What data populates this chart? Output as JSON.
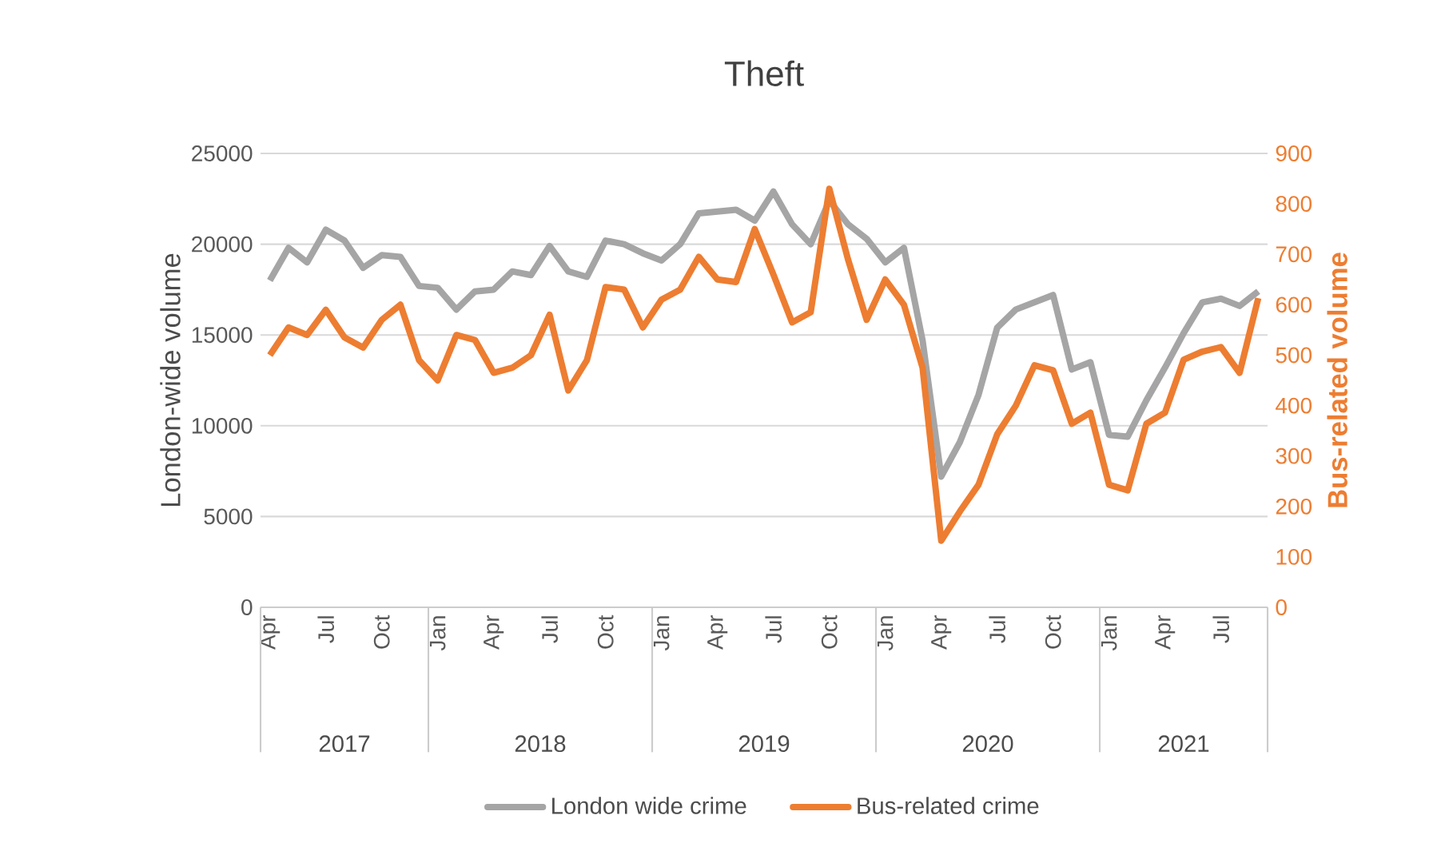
{
  "chart_data": {
    "type": "line",
    "title": "Theft",
    "ylabel": "London-wide volume",
    "y2label": "Bus-related volume",
    "x": [
      "2017-04",
      "2017-05",
      "2017-06",
      "2017-07",
      "2017-08",
      "2017-09",
      "2017-10",
      "2017-11",
      "2017-12",
      "2018-01",
      "2018-02",
      "2018-03",
      "2018-04",
      "2018-05",
      "2018-06",
      "2018-07",
      "2018-08",
      "2018-09",
      "2018-10",
      "2018-11",
      "2018-12",
      "2019-01",
      "2019-02",
      "2019-03",
      "2019-04",
      "2019-05",
      "2019-06",
      "2019-07",
      "2019-08",
      "2019-09",
      "2019-10",
      "2019-11",
      "2019-12",
      "2020-01",
      "2020-02",
      "2020-03",
      "2020-04",
      "2020-05",
      "2020-06",
      "2020-07",
      "2020-08",
      "2020-09",
      "2020-10",
      "2020-11",
      "2020-12",
      "2021-01",
      "2021-02",
      "2021-03",
      "2021-04",
      "2021-05",
      "2021-06",
      "2021-07",
      "2021-08",
      "2021-09"
    ],
    "series": [
      {
        "name": "London wide crime",
        "color": "#a5a5a5",
        "values": [
          18000,
          19800,
          19000,
          20800,
          20200,
          18700,
          19400,
          19300,
          17700,
          17600,
          16400,
          17400,
          17500,
          18500,
          18300,
          19900,
          18500,
          18200,
          20200,
          20000,
          19500,
          19100,
          20000,
          21700,
          21800,
          21900,
          21300,
          22900,
          21100,
          20000,
          22400,
          21100,
          20300,
          19000,
          19800,
          14700,
          7200,
          9100,
          11700,
          15400,
          16400,
          16800,
          17200,
          13100,
          13500,
          9500,
          9400,
          11400,
          13200,
          15100,
          16800,
          17000,
          16600,
          17400
        ]
      },
      {
        "name": "Bus-related crime",
        "color": "#ed7d31",
        "axis": "y2",
        "values": [
          500,
          555,
          540,
          590,
          535,
          515,
          570,
          600,
          490,
          450,
          540,
          530,
          465,
          475,
          500,
          580,
          430,
          490,
          635,
          630,
          555,
          610,
          630,
          695,
          650,
          645,
          750,
          660,
          565,
          585,
          830,
          690,
          570,
          650,
          600,
          475,
          132,
          190,
          243,
          343,
          400,
          480,
          470,
          364,
          386,
          243,
          232,
          364,
          386,
          491,
          507,
          516,
          465,
          613
        ]
      }
    ],
    "xlim": [
      "2017-03-16",
      "2021-09-16"
    ],
    "xticks": [
      {
        "value": "2017-04",
        "label": "Apr"
      },
      {
        "value": "2017-07",
        "label": "Jul"
      },
      {
        "value": "2017-10",
        "label": "Oct"
      },
      {
        "value": "2018-01",
        "label": "Jan"
      },
      {
        "value": "2018-04",
        "label": "Apr"
      },
      {
        "value": "2018-07",
        "label": "Jul"
      },
      {
        "value": "2018-10",
        "label": "Oct"
      },
      {
        "value": "2019-01",
        "label": "Jan"
      },
      {
        "value": "2019-04",
        "label": "Apr"
      },
      {
        "value": "2019-07",
        "label": "Jul"
      },
      {
        "value": "2019-10",
        "label": "Oct"
      },
      {
        "value": "2020-01",
        "label": "Jan"
      },
      {
        "value": "2020-04",
        "label": "Apr"
      },
      {
        "value": "2020-07",
        "label": "Jul"
      },
      {
        "value": "2020-10",
        "label": "Oct"
      },
      {
        "value": "2021-01",
        "label": "Jan"
      },
      {
        "value": "2021-04",
        "label": "Apr"
      },
      {
        "value": "2021-07",
        "label": "Jul"
      }
    ],
    "ylim": [
      0,
      25000
    ],
    "yticks": [
      0,
      5000,
      10000,
      15000,
      20000,
      25000
    ],
    "y2lim": [
      0,
      900
    ],
    "y2ticks": [
      0,
      100,
      200,
      300,
      400,
      500,
      600,
      700,
      800,
      900
    ],
    "annotations": [
      "2017",
      "2018",
      "2019",
      "2020",
      "2021"
    ],
    "grid": "y",
    "legend": "bottom",
    "marker": "none",
    "line_style": "solid"
  }
}
